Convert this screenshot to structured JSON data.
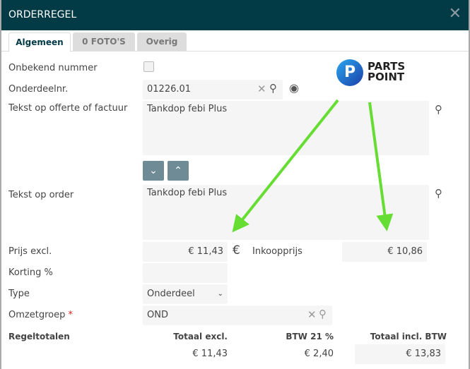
{
  "dialog": {
    "title": "ORDERREGEL"
  },
  "tabs": [
    {
      "label": "Algemeen",
      "active": true
    },
    {
      "label": "0 FOTO'S"
    },
    {
      "label": "Overig"
    }
  ],
  "logo": {
    "text_line1": "PARTS",
    "text_line2": "POINT",
    "brand_color": "#1e6fd9"
  },
  "form": {
    "unknown_number": {
      "label": "Onbekend nummer",
      "checked": false
    },
    "part_number": {
      "label": "Onderdeelnr.",
      "value": "01226.01"
    },
    "quote_text": {
      "label": "Tekst op offerte of factuur",
      "value": "Tankdop febi Plus"
    },
    "order_text": {
      "label": "Tekst op order",
      "value": "Tankdop febi Plus"
    },
    "price_excl": {
      "label": "Prijs excl.",
      "value": "€ 11,43",
      "currency": "€"
    },
    "purchase_price": {
      "label": "Inkoopprijs",
      "value": "€ 10,86"
    },
    "discount": {
      "label": "Korting %",
      "value": ""
    },
    "type": {
      "label": "Type",
      "value": "Onderdeel"
    },
    "revenue_group": {
      "label": "Omzetgroep",
      "required": "*",
      "value": "OND"
    }
  },
  "totals": {
    "label": "Regeltotalen",
    "total_excl_label": "Totaal excl.",
    "vat_label": "BTW 21 %",
    "total_incl_label": "Totaal incl. BTW",
    "total_excl": "€ 11,43",
    "vat": "€ 2,40",
    "total_incl": "€ 13,83"
  },
  "colors": {
    "header": "#023a46",
    "arrow": "#66dd33",
    "buttons": "#6f8b96"
  }
}
